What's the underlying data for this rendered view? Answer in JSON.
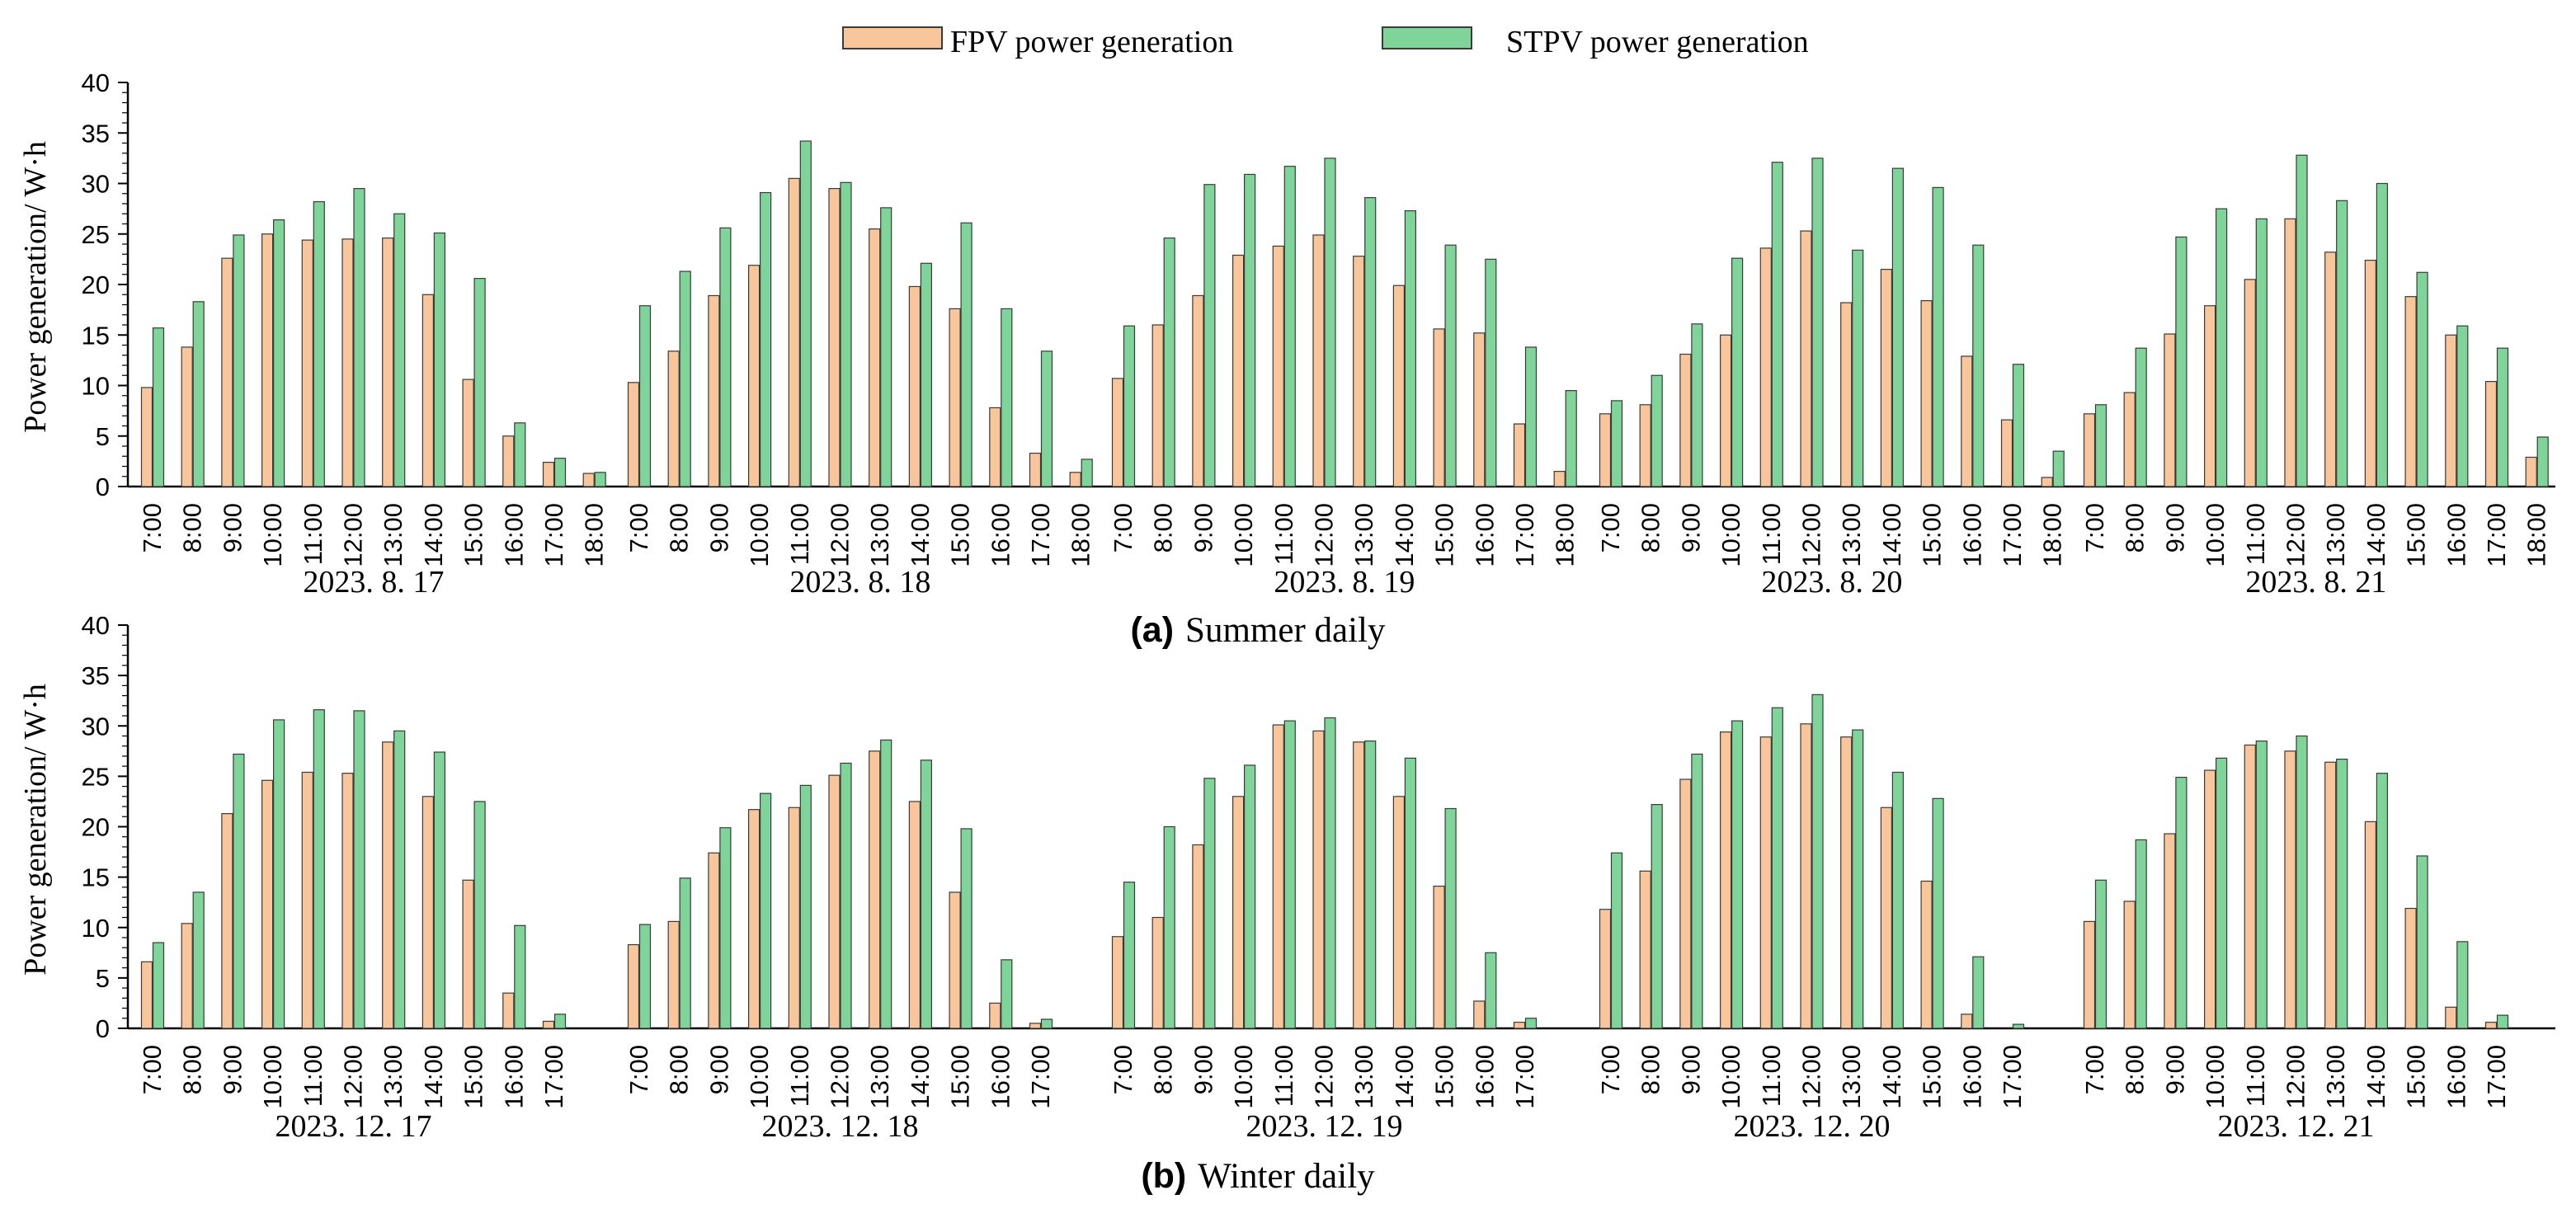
{
  "legend": {
    "items": [
      {
        "name": "FPV power generation",
        "color": "#f9c59a"
      },
      {
        "name": "STPV power generation",
        "color": "#7fd49a"
      }
    ]
  },
  "colors": {
    "fpv": "#f9c59a",
    "stpv": "#7fd49a",
    "edge": "#3a3a3a"
  },
  "chart_data": [
    {
      "type": "bar",
      "panel": "a",
      "caption_letter": "(a)",
      "caption_text": "Summer daily",
      "ylabel": "Power generation/ W·h",
      "ylim": [
        0,
        40
      ],
      "yticks": [
        0,
        5,
        10,
        15,
        20,
        25,
        30,
        35,
        40
      ],
      "series_names": [
        "FPV power generation",
        "STPV power generation"
      ],
      "days": [
        {
          "date": "2023. 8. 17",
          "hours": [
            "7:00",
            "8:00",
            "9:00",
            "10:00",
            "11:00",
            "12:00",
            "13:00",
            "14:00",
            "15:00",
            "16:00",
            "17:00",
            "18:00"
          ],
          "fpv": [
            9.8,
            13.8,
            22.6,
            25.0,
            24.4,
            24.5,
            24.6,
            19.0,
            10.6,
            5.0,
            2.4,
            1.3
          ],
          "stpv": [
            15.7,
            18.3,
            24.9,
            26.4,
            28.2,
            29.5,
            27.0,
            25.1,
            20.6,
            6.3,
            2.8,
            1.4
          ]
        },
        {
          "date": "2023. 8. 18",
          "hours": [
            "7:00",
            "8:00",
            "9:00",
            "10:00",
            "11:00",
            "12:00",
            "13:00",
            "14:00",
            "15:00",
            "16:00",
            "17:00",
            "18:00"
          ],
          "fpv": [
            10.3,
            13.4,
            18.9,
            21.9,
            30.5,
            29.5,
            25.5,
            19.8,
            17.6,
            7.8,
            3.3,
            1.4
          ],
          "stpv": [
            17.9,
            21.3,
            25.6,
            29.1,
            34.2,
            30.1,
            27.6,
            22.1,
            26.1,
            17.6,
            13.4,
            2.7
          ]
        },
        {
          "date": "2023. 8. 19",
          "hours": [
            "7:00",
            "8:00",
            "9:00",
            "10:00",
            "11:00",
            "12:00",
            "13:00",
            "14:00",
            "15:00",
            "16:00",
            "17:00",
            "18:00"
          ],
          "fpv": [
            10.7,
            16.0,
            18.9,
            22.9,
            23.8,
            24.9,
            22.8,
            19.9,
            15.6,
            15.2,
            6.2,
            1.5
          ],
          "stpv": [
            15.9,
            24.6,
            29.9,
            30.9,
            31.7,
            32.5,
            28.6,
            27.3,
            23.9,
            22.5,
            13.8,
            9.5
          ]
        },
        {
          "date": "2023. 8. 20",
          "hours": [
            "7:00",
            "8:00",
            "9:00",
            "10:00",
            "11:00",
            "12:00",
            "13:00",
            "14:00",
            "15:00",
            "16:00",
            "17:00",
            "18:00"
          ],
          "fpv": [
            7.2,
            8.1,
            13.1,
            15.0,
            23.6,
            25.3,
            18.2,
            21.5,
            18.4,
            12.9,
            6.6,
            0.9
          ],
          "stpv": [
            8.5,
            11.0,
            16.1,
            22.6,
            32.1,
            32.5,
            23.4,
            31.5,
            29.6,
            23.9,
            12.1,
            3.5
          ]
        },
        {
          "date": "2023. 8. 21",
          "hours": [
            "7:00",
            "8:00",
            "9:00",
            "10:00",
            "11:00",
            "12:00",
            "13:00",
            "14:00",
            "15:00",
            "16:00",
            "17:00",
            "18:00"
          ],
          "fpv": [
            7.2,
            9.3,
            15.1,
            17.9,
            20.5,
            26.5,
            23.2,
            22.4,
            18.8,
            15.0,
            10.4,
            2.9
          ],
          "stpv": [
            8.1,
            13.7,
            24.7,
            27.5,
            26.5,
            32.8,
            28.3,
            30.0,
            21.2,
            15.9,
            13.7,
            4.9
          ]
        }
      ]
    },
    {
      "type": "bar",
      "panel": "b",
      "caption_letter": "(b)",
      "caption_text": "Winter daily",
      "ylabel": "Power generation/ W·h",
      "ylim": [
        0,
        40
      ],
      "yticks": [
        0,
        5,
        10,
        15,
        20,
        25,
        30,
        35,
        40
      ],
      "series_names": [
        "FPV power generation",
        "STPV power generation"
      ],
      "days": [
        {
          "date": "2023. 12. 17",
          "hours": [
            "7:00",
            "8:00",
            "9:00",
            "10:00",
            "11:00",
            "12:00",
            "13:00",
            "14:00",
            "15:00",
            "16:00",
            "17:00"
          ],
          "fpv": [
            6.6,
            10.4,
            21.3,
            24.6,
            25.4,
            25.3,
            28.4,
            23.0,
            14.7,
            3.5,
            0.7
          ],
          "stpv": [
            8.5,
            13.5,
            27.2,
            30.6,
            31.6,
            31.5,
            29.5,
            27.4,
            22.5,
            10.2,
            1.4
          ]
        },
        {
          "date": "2023. 12. 18",
          "hours": [
            "7:00",
            "8:00",
            "9:00",
            "10:00",
            "11:00",
            "12:00",
            "13:00",
            "14:00",
            "15:00",
            "16:00",
            "17:00"
          ],
          "fpv": [
            8.3,
            10.6,
            17.4,
            21.7,
            21.9,
            25.1,
            27.5,
            22.5,
            13.5,
            2.5,
            0.5
          ],
          "stpv": [
            10.3,
            14.9,
            19.9,
            23.3,
            24.1,
            26.3,
            28.6,
            26.6,
            19.8,
            6.8,
            0.9
          ]
        },
        {
          "date": "2023. 12. 19",
          "hours": [
            "7:00",
            "8:00",
            "9:00",
            "10:00",
            "11:00",
            "12:00",
            "13:00",
            "14:00",
            "15:00",
            "16:00",
            "17:00"
          ],
          "fpv": [
            9.1,
            11.0,
            18.2,
            23.0,
            30.1,
            29.5,
            28.4,
            23.0,
            14.1,
            2.7,
            0.6
          ],
          "stpv": [
            14.5,
            20.0,
            24.8,
            26.1,
            30.5,
            30.8,
            28.5,
            26.8,
            21.8,
            7.5,
            1.0
          ]
        },
        {
          "date": "2023. 12. 20",
          "hours": [
            "7:00",
            "8:00",
            "9:00",
            "10:00",
            "11:00",
            "12:00",
            "13:00",
            "14:00",
            "15:00",
            "16:00",
            "17:00"
          ],
          "fpv": [
            11.8,
            15.6,
            24.7,
            29.4,
            28.9,
            30.2,
            28.9,
            21.9,
            14.6,
            1.4,
            0.0
          ],
          "stpv": [
            17.4,
            22.2,
            27.2,
            30.5,
            31.8,
            33.1,
            29.6,
            25.4,
            22.8,
            7.1,
            0.4
          ]
        },
        {
          "date": "2023. 12. 21",
          "hours": [
            "7:00",
            "8:00",
            "9:00",
            "10:00",
            "11:00",
            "12:00",
            "13:00",
            "14:00",
            "15:00",
            "16:00",
            "17:00"
          ],
          "fpv": [
            10.6,
            12.6,
            19.3,
            25.6,
            28.1,
            27.5,
            26.4,
            20.5,
            11.9,
            2.1,
            0.6
          ],
          "stpv": [
            14.7,
            18.7,
            24.9,
            26.8,
            28.5,
            29.0,
            26.7,
            25.3,
            17.1,
            8.6,
            1.3
          ]
        }
      ]
    }
  ]
}
